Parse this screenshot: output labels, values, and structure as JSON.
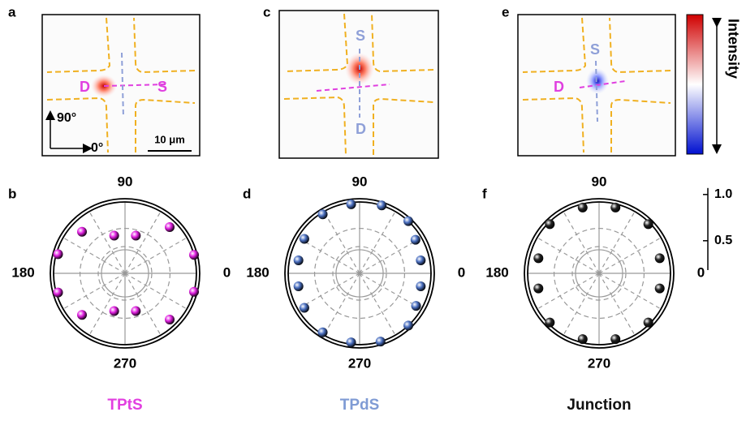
{
  "chart_data": [
    {
      "type": "polar",
      "panel": "b",
      "label": "TPtS",
      "label_color": "#e23fe0",
      "color": "#e01fe0",
      "theta": [
        15,
        46,
        74,
        106,
        136,
        164,
        196,
        224,
        254,
        286,
        314,
        345
      ],
      "r": [
        1.0,
        0.92,
        0.64,
        0.64,
        0.87,
        0.98,
        0.98,
        0.87,
        0.64,
        0.64,
        0.92,
        1.0
      ],
      "thetaticks": [
        0,
        90,
        180,
        270
      ]
    },
    {
      "type": "polar",
      "panel": "d",
      "label": "TPdS",
      "label_color": "#7f9bd4",
      "color": "#4a6fc0",
      "theta": [
        12,
        31,
        47,
        72,
        97,
        122,
        148,
        168,
        192,
        212,
        238,
        263,
        287,
        313,
        330,
        348
      ],
      "r": [
        0.9,
        0.93,
        1.0,
        1.0,
        0.98,
        0.98,
        0.93,
        0.9,
        0.9,
        0.93,
        0.98,
        0.98,
        1.0,
        1.0,
        0.93,
        0.9
      ],
      "thetaticks": [
        0,
        90,
        180,
        270
      ]
    },
    {
      "type": "polar",
      "panel": "f",
      "label": "Junction",
      "label_color": "#111111",
      "color": "#222222",
      "theta": [
        14,
        45,
        76,
        104,
        135,
        166,
        194,
        225,
        256,
        284,
        315,
        346
      ],
      "r": [
        0.9,
        0.98,
        0.96,
        0.96,
        0.98,
        0.9,
        0.9,
        0.98,
        0.96,
        0.96,
        0.98,
        0.9
      ],
      "thetaticks": [
        0,
        90,
        180,
        270
      ]
    }
  ],
  "radial_axis": {
    "rlim": [
      0.2,
      1.0
    ],
    "rticks": [
      {
        "value": 0.5,
        "label": "0.5"
      },
      {
        "value": 1.0,
        "label": "1.0"
      }
    ]
  },
  "images": [
    {
      "panel": "a",
      "drain": "D",
      "source": "S",
      "up": "90°",
      "right": "0°",
      "scale": "10 μm"
    },
    {
      "panel": "c",
      "source": "S",
      "drain": "D"
    },
    {
      "panel": "e",
      "source": "S",
      "drain": "D"
    }
  ],
  "colorbar": {
    "label": "Intensity"
  }
}
